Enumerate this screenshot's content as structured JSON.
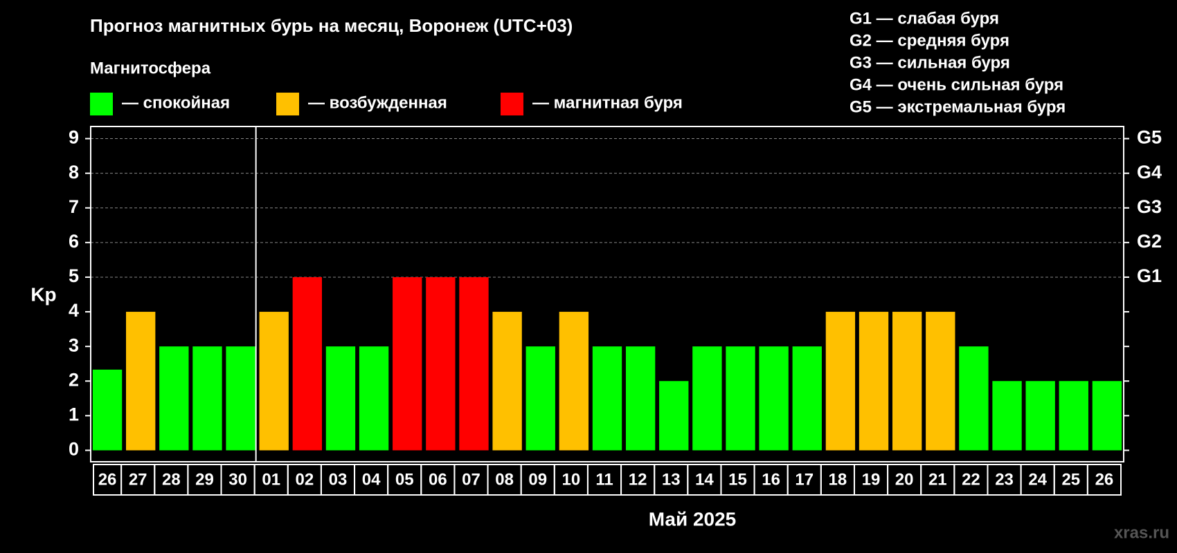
{
  "chart_data": {
    "type": "bar",
    "title": "Прогноз магнитных бурь на месяц, Воронеж (UTC+03)",
    "legend_title": "Магнитосфера",
    "legend": [
      {
        "label": "— спокойная",
        "color": "#00ff00"
      },
      {
        "label": "— возбужденная",
        "color": "#ffc000"
      },
      {
        "label": "— магнитная буря",
        "color": "#ff0000"
      }
    ],
    "scale_notes": [
      "G1 — слабая буря",
      "G2 — средняя буря",
      "G3 — сильная буря",
      "G4 — очень сильная буря",
      "G5 — экстремальная буря"
    ],
    "y_label": "Kp",
    "x_label": "Май 2025",
    "watermark": "xras.ru",
    "categories": [
      "26",
      "27",
      "28",
      "29",
      "30",
      "01",
      "02",
      "03",
      "04",
      "05",
      "06",
      "07",
      "08",
      "09",
      "10",
      "11",
      "12",
      "13",
      "14",
      "15",
      "16",
      "17",
      "18",
      "19",
      "20",
      "21",
      "22",
      "23",
      "24",
      "25",
      "26"
    ],
    "values": [
      2.33,
      4,
      3,
      3,
      3,
      4,
      5,
      3,
      3,
      5,
      5,
      5,
      4,
      3,
      4,
      3,
      3,
      2,
      3,
      3,
      3,
      3,
      4,
      4,
      4,
      4,
      3,
      2,
      2,
      2,
      2
    ],
    "colors": [
      "#00ff00",
      "#ffc000",
      "#00ff00",
      "#00ff00",
      "#00ff00",
      "#ffc000",
      "#ff0000",
      "#00ff00",
      "#00ff00",
      "#ff0000",
      "#ff0000",
      "#ff0000",
      "#ffc000",
      "#00ff00",
      "#ffc000",
      "#00ff00",
      "#00ff00",
      "#00ff00",
      "#00ff00",
      "#00ff00",
      "#00ff00",
      "#00ff00",
      "#ffc000",
      "#ffc000",
      "#ffc000",
      "#ffc000",
      "#00ff00",
      "#00ff00",
      "#00ff00",
      "#00ff00",
      "#00ff00"
    ],
    "month_start_index": 5,
    "ylim": [
      -0.33,
      9.35
    ],
    "yticks": [
      0,
      1,
      2,
      3,
      4,
      5,
      6,
      7,
      8,
      9
    ],
    "y2lim": [
      -0.33,
      9.35
    ],
    "y2ticks": [
      {
        "value": 5,
        "label": "G1"
      },
      {
        "value": 6,
        "label": "G2"
      },
      {
        "value": 7,
        "label": "G3"
      },
      {
        "value": 8,
        "label": "G4"
      },
      {
        "value": 9,
        "label": "G5"
      }
    ],
    "grid": true
  }
}
